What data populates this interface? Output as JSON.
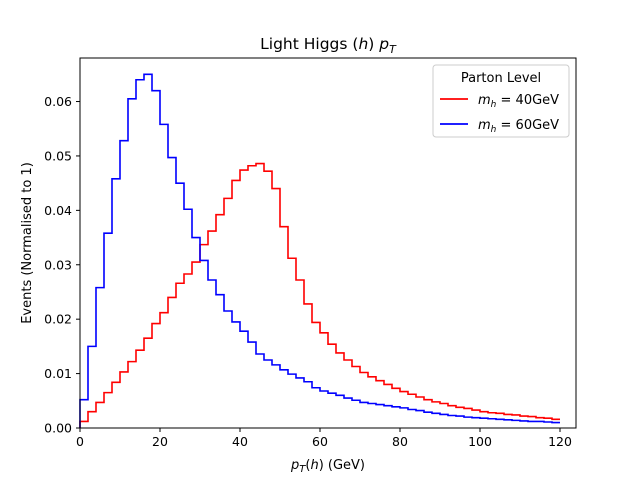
{
  "chart_data": {
    "type": "line",
    "style": "step-histogram",
    "title": "Light Higgs (h) pT",
    "xlabel": "pT(h) (GeV)",
    "ylabel": "Events (Normalised to 1)",
    "xlim": [
      0,
      124
    ],
    "ylim": [
      0,
      0.068
    ],
    "xticks": [
      0,
      20,
      40,
      60,
      80,
      100,
      120
    ],
    "yticks": [
      0.0,
      0.01,
      0.02,
      0.03,
      0.04,
      0.05,
      0.06
    ],
    "ytick_labels": [
      "0.00",
      "0.01",
      "0.02",
      "0.03",
      "0.04",
      "0.05",
      "0.06"
    ],
    "grid": false,
    "legend": {
      "title": "Parton Level",
      "placement": "top-right"
    },
    "bin_edges": [
      0,
      2,
      4,
      6,
      8,
      10,
      12,
      14,
      16,
      18,
      20,
      22,
      24,
      26,
      28,
      30,
      32,
      34,
      36,
      38,
      40,
      42,
      44,
      46,
      48,
      50,
      52,
      54,
      56,
      58,
      60,
      62,
      64,
      66,
      68,
      70,
      72,
      74,
      76,
      78,
      80,
      82,
      84,
      86,
      88,
      90,
      92,
      94,
      96,
      98,
      100,
      102,
      104,
      106,
      108,
      110,
      112,
      114,
      116,
      118,
      120
    ],
    "series": [
      {
        "name": "m_h = 40GeV",
        "label_main": "m",
        "label_sub": "h",
        "label_rest": " = 40GeV",
        "color": "#ff0000",
        "values": [
          0.0012,
          0.003,
          0.0047,
          0.0065,
          0.0084,
          0.0103,
          0.0122,
          0.0143,
          0.0165,
          0.0192,
          0.0212,
          0.024,
          0.0266,
          0.0283,
          0.0305,
          0.0337,
          0.0362,
          0.0392,
          0.0422,
          0.0455,
          0.0474,
          0.0482,
          0.0486,
          0.0472,
          0.044,
          0.037,
          0.0312,
          0.0272,
          0.0228,
          0.0194,
          0.0175,
          0.0154,
          0.0138,
          0.0125,
          0.0113,
          0.0102,
          0.0094,
          0.0087,
          0.008,
          0.0073,
          0.0067,
          0.0062,
          0.0057,
          0.0052,
          0.0048,
          0.0045,
          0.0041,
          0.0038,
          0.0036,
          0.0033,
          0.003,
          0.0028,
          0.0027,
          0.0025,
          0.0024,
          0.0022,
          0.0021,
          0.0019,
          0.0018,
          0.0016
        ]
      },
      {
        "name": "m_h = 60GeV",
        "label_main": "m",
        "label_sub": "h",
        "label_rest": " = 60GeV",
        "color": "#0000ff",
        "values": [
          0.0052,
          0.015,
          0.0258,
          0.0358,
          0.0458,
          0.0528,
          0.0605,
          0.064,
          0.065,
          0.062,
          0.0558,
          0.0497,
          0.045,
          0.0402,
          0.035,
          0.0308,
          0.0272,
          0.0245,
          0.0215,
          0.0195,
          0.0178,
          0.0158,
          0.0136,
          0.0125,
          0.0116,
          0.0107,
          0.0099,
          0.0092,
          0.0085,
          0.0074,
          0.0068,
          0.0064,
          0.006,
          0.0055,
          0.0051,
          0.0047,
          0.0045,
          0.0043,
          0.0041,
          0.0039,
          0.0037,
          0.0034,
          0.0032,
          0.0029,
          0.0027,
          0.0025,
          0.0023,
          0.0022,
          0.002,
          0.0019,
          0.0018,
          0.0017,
          0.0016,
          0.0015,
          0.0014,
          0.0013,
          0.0012,
          0.0012,
          0.0011,
          0.001
        ]
      }
    ]
  }
}
